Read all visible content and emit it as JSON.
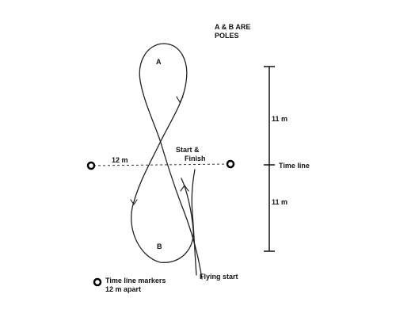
{
  "note": {
    "line1": "A & B ARE",
    "line2": "POLES"
  },
  "poles": {
    "a": "A",
    "b": "B"
  },
  "dimensions": {
    "upper": "11 m",
    "lower": "11 m",
    "horizontal": "12 m"
  },
  "labels": {
    "time_line": "Time line",
    "start_line1": "Start &",
    "start_line2": "Finish",
    "flying_start": "Flying start"
  },
  "legend": {
    "line1": "Time line markers",
    "line2": "12 m apart"
  }
}
